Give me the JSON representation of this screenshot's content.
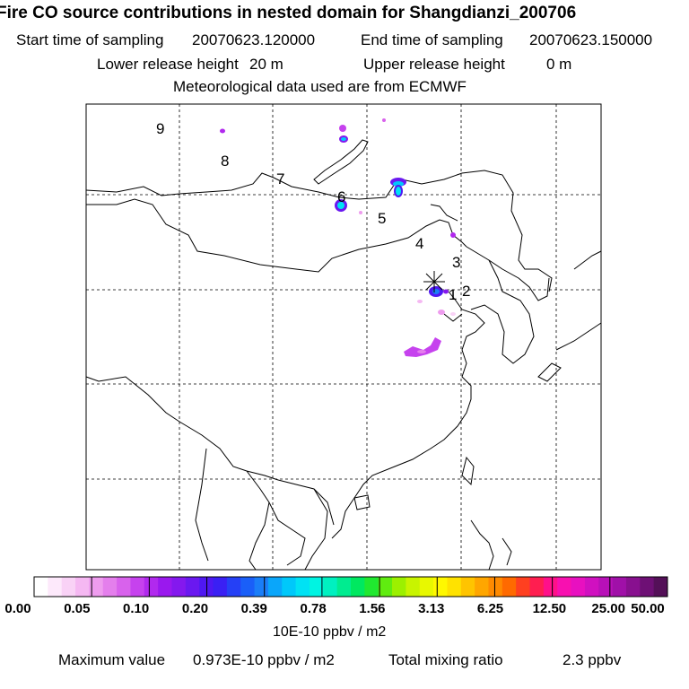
{
  "header": {
    "title": "Fire CO source contributions in nested domain for Shangdianzi_200706",
    "start_label": "Start time of sampling",
    "start_value": "20070623.120000",
    "end_label": "End time of sampling",
    "end_value": "20070623.150000",
    "lower_label": "Lower release height",
    "lower_value": "20 m",
    "upper_label": "Upper release height",
    "upper_value": "0 m",
    "met_text": "Meteorological data used are from ECMWF"
  },
  "map": {
    "receptor_marker": "asterisk-icon",
    "point_labels": [
      "1",
      "2",
      "3",
      "4",
      "5",
      "6",
      "7",
      "8",
      "9"
    ]
  },
  "colorbar": {
    "tick_labels": [
      "0.00",
      "0.05",
      "0.10",
      "0.20",
      "0.39",
      "0.78",
      "1.56",
      "3.13",
      "6.25",
      "12.50",
      "25.00",
      "50.00"
    ],
    "unit": "10E-10 ppbv / m2",
    "colors": [
      "#ffffff",
      "#fde9fb",
      "#f9d2f6",
      "#f5b8f2",
      "#ee9cee",
      "#e47fec",
      "#d862ec",
      "#c642ee",
      "#b129ee",
      "#9a18ee",
      "#8418ee",
      "#6a18f0",
      "#4f18f2",
      "#3a20f4",
      "#2540f6",
      "#1a5ff8",
      "#1a7ef8",
      "#0aa6fa",
      "#00c8fa",
      "#00e2f4",
      "#00f4e2",
      "#00f0c0",
      "#00ec90",
      "#00e860",
      "#20e830",
      "#60ec10",
      "#9cf000",
      "#c8f400",
      "#e8f800",
      "#fff800",
      "#ffe200",
      "#ffc400",
      "#ffa600",
      "#ff8a00",
      "#ff6a00",
      "#ff4020",
      "#ff1e50",
      "#ff108a",
      "#f810b0",
      "#e810c0",
      "#d010c0",
      "#b810b8",
      "#a010a8",
      "#88108f",
      "#6e1075",
      "#541058"
    ]
  },
  "footer": {
    "max_label": "Maximum value",
    "max_value": "0.973E-10 ppbv / m2",
    "total_label": "Total mixing ratio",
    "total_value": "2.3 ppbv"
  }
}
